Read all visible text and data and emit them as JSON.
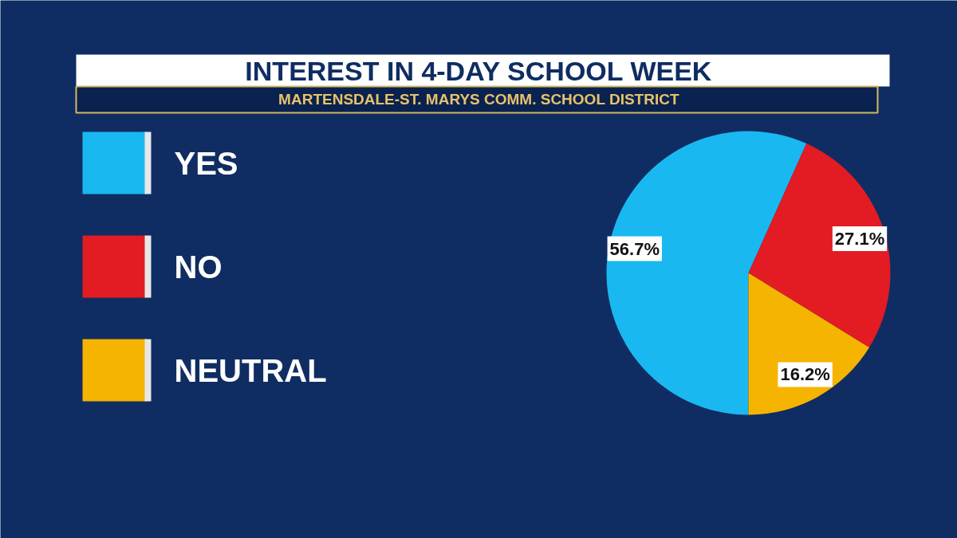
{
  "chart_data": {
    "type": "pie",
    "title": "INTEREST IN 4-DAY SCHOOL WEEK",
    "subtitle": "MARTENSDALE-ST. MARYS COMM. SCHOOL DISTRICT",
    "categories": [
      "YES",
      "NO",
      "NEUTRAL"
    ],
    "values": [
      56.7,
      27.1,
      16.2
    ],
    "colors": [
      "#1ab8f0",
      "#e31b23",
      "#f5b400"
    ],
    "value_labels": [
      "56.7%",
      "27.1%",
      "16.2%"
    ],
    "legend": "left"
  }
}
